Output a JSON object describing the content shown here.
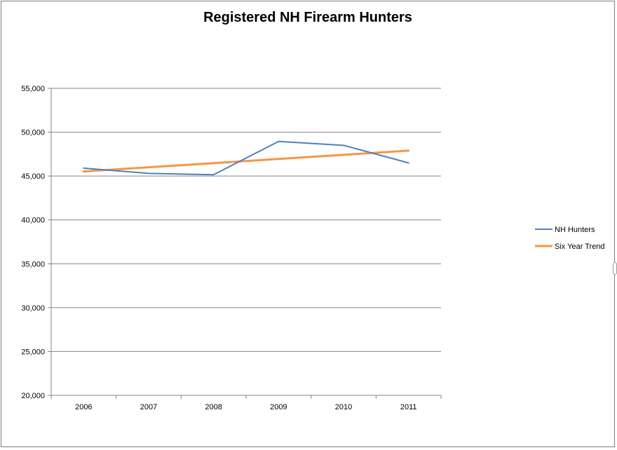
{
  "chart_data": {
    "type": "line",
    "title": "Registered NH Firearm Hunters",
    "categories": [
      "2006",
      "2007",
      "2008",
      "2009",
      "2010",
      "2011"
    ],
    "ylim": [
      20000,
      55000
    ],
    "yticks": [
      20000,
      25000,
      30000,
      35000,
      40000,
      45000,
      50000,
      55000
    ],
    "ytick_labels": [
      "20,000",
      "25,000",
      "30,000",
      "35,000",
      "40,000",
      "45,000",
      "50,000",
      "55,000"
    ],
    "grid": true,
    "legend_position": "right",
    "series": [
      {
        "name": "NH Hunters",
        "values": [
          45900,
          45300,
          45150,
          48950,
          48500,
          46500
        ],
        "color": "#4f81bd"
      },
      {
        "name": "Six Year Trend",
        "values": [
          45520,
          46000,
          46470,
          46950,
          47420,
          47900
        ],
        "color": "#f79646"
      }
    ]
  }
}
